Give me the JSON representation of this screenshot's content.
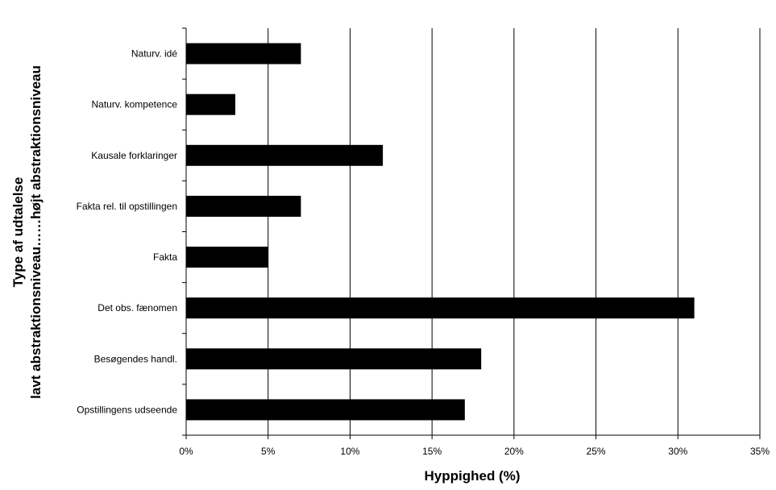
{
  "chart_data": {
    "type": "bar",
    "orientation": "horizontal",
    "xlabel": "Hyppighed (%)",
    "ylabel_lines": [
      "Type af udtalelse",
      "lavt abstraktionsniveau……højt abstraktionsniveau"
    ],
    "xlim": [
      0,
      35
    ],
    "x_ticks": [
      0,
      5,
      10,
      15,
      20,
      25,
      30,
      35
    ],
    "x_tick_labels": [
      "0%",
      "5%",
      "10%",
      "15%",
      "20%",
      "25%",
      "30%",
      "35%"
    ],
    "grid": "vertical",
    "legend": "none",
    "bar_color": "#000000",
    "categories": [
      "Naturv. idé",
      "Naturv. kompetence",
      "Kausale forklaringer",
      "Fakta rel. til opstillingen",
      "Fakta",
      "Det obs. fænomen",
      "Besøgendes handl.",
      "Opstillingens udseende"
    ],
    "values": [
      7,
      3,
      12,
      7,
      5,
      31,
      18,
      17
    ]
  }
}
